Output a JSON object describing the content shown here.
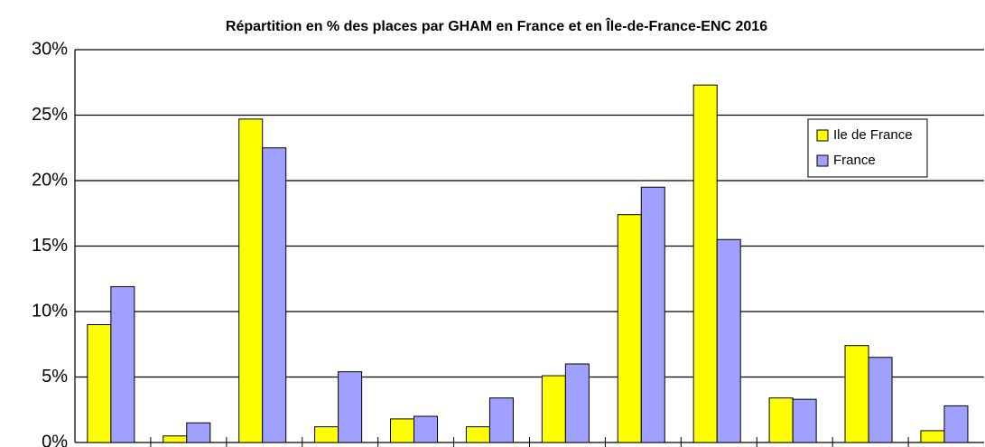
{
  "chart_data": {
    "type": "bar",
    "title": "Répartition en % des places par GHAM en France et en  Île-de-France-ENC 2016",
    "categories": [
      null,
      null,
      null,
      null,
      null,
      null,
      null,
      null,
      null,
      null,
      null,
      null
    ],
    "series": [
      {
        "name": "Ile de France",
        "color": "#ffff00",
        "values": [
          9.0,
          0.5,
          24.7,
          1.2,
          1.8,
          1.2,
          5.1,
          17.4,
          27.3,
          3.4,
          7.4,
          0.9
        ]
      },
      {
        "name": "France",
        "color": "#a0a0ff",
        "values": [
          11.9,
          1.5,
          22.5,
          5.4,
          2.0,
          3.4,
          6.0,
          19.5,
          15.5,
          3.3,
          6.5,
          2.8
        ]
      }
    ],
    "ylim": [
      0,
      30
    ],
    "yticks": [
      {
        "value": 0,
        "label": "0%"
      },
      {
        "value": 5,
        "label": "5%"
      },
      {
        "value": 10,
        "label": "10%"
      },
      {
        "value": 15,
        "label": "15%"
      },
      {
        "value": 20,
        "label": "20%"
      },
      {
        "value": 25,
        "label": "25%"
      },
      {
        "value": 30,
        "label": "30%"
      }
    ],
    "grid": true,
    "legend": "upper right"
  }
}
